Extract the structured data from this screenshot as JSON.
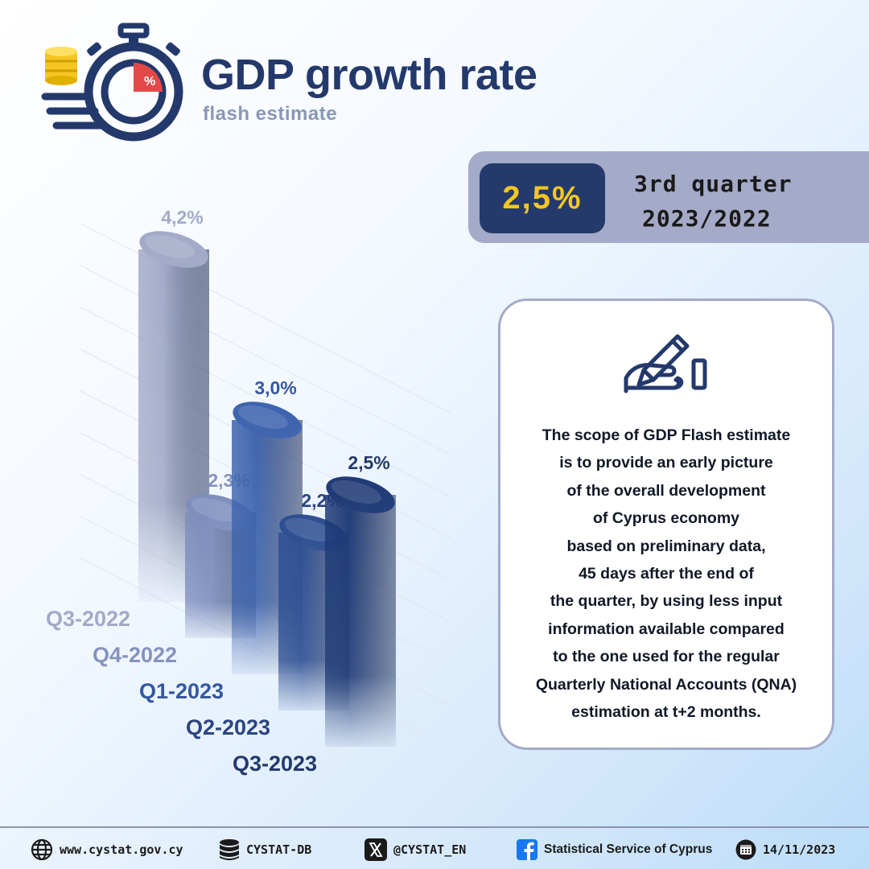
{
  "header": {
    "title": "GDP growth rate",
    "subtitle": "flash estimate",
    "logo_icon": "stopwatch-coins-percent-icon"
  },
  "headline": {
    "value": "2,5%",
    "period_line1": "3rd quarter",
    "period_line2": "2023/2022"
  },
  "info_card": {
    "icon": "hand-writing-icon",
    "text": "The scope of GDP Flash estimate\nis to provide an early picture\nof the overall development\nof Cyprus economy\nbased on preliminary data,\n45 days after the end of\nthe quarter, by using less input\ninformation available compared\nto the one used for the regular\nQuarterly National Accounts (QNA)\nestimation at t+2 months."
  },
  "chart_data": {
    "type": "bar",
    "categories": [
      "Q3-2022",
      "Q4-2022",
      "Q1-2023",
      "Q2-2023",
      "Q3-2023"
    ],
    "values": [
      4.2,
      2.3,
      3.0,
      2.2,
      2.5
    ],
    "data_labels": [
      "4,2%",
      "2,3%",
      "3,0%",
      "2,2%",
      "2,5%"
    ],
    "unit": "%",
    "colors": [
      "#a3aac8",
      "#7d8ebe",
      "#3d63ad",
      "#2e4f92",
      "#1f3a76"
    ],
    "label_colors": [
      "#a3aac8",
      "#8593be",
      "#34589e",
      "#2c4480",
      "#24396b"
    ],
    "grid": true,
    "style": "3d-cylinders"
  },
  "footer": {
    "website": "www.cystat.gov.cy",
    "database": "CYSTAT-DB",
    "x_handle": "@CYSTAT_EN",
    "facebook": "Statistical Service of Cyprus",
    "date": "14/11/2023"
  },
  "colors": {
    "navy": "#24396b",
    "accent_yellow": "#f3c622",
    "banner_gray": "#a4aac7",
    "subtitle_gray": "#8a96b6"
  }
}
